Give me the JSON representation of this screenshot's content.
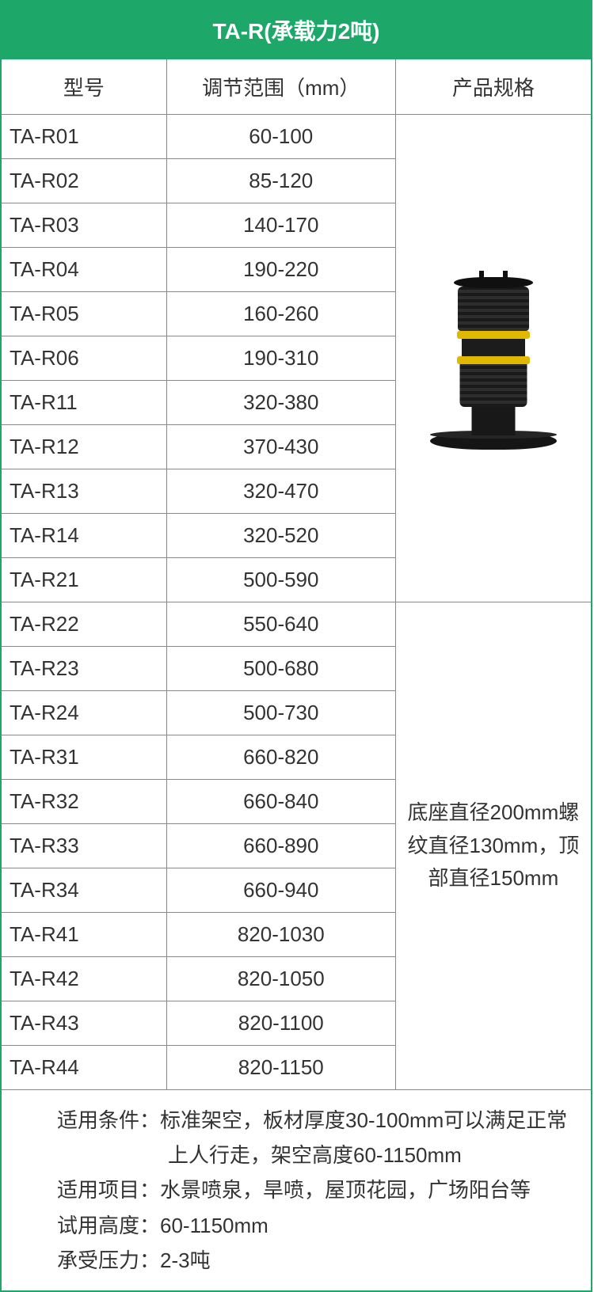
{
  "title": "TA-R(承载力2吨)",
  "columns": {
    "model": "型号",
    "range": "调节范围（mm）",
    "spec": "产品规格"
  },
  "rows_top": [
    {
      "model": "TA-R01",
      "range": "60-100"
    },
    {
      "model": "TA-R02",
      "range": "85-120"
    },
    {
      "model": "TA-R03",
      "range": "140-170"
    },
    {
      "model": "TA-R04",
      "range": "190-220"
    },
    {
      "model": "TA-R05",
      "range": "160-260"
    },
    {
      "model": "TA-R06",
      "range": "190-310"
    },
    {
      "model": "TA-R11",
      "range": "320-380"
    },
    {
      "model": "TA-R12",
      "range": "370-430"
    },
    {
      "model": "TA-R13",
      "range": "320-470"
    },
    {
      "model": "TA-R14",
      "range": "320-520"
    },
    {
      "model": "TA-R21",
      "range": "500-590"
    }
  ],
  "rows_bottom": [
    {
      "model": "TA-R22",
      "range": "550-640"
    },
    {
      "model": "TA-R23",
      "range": "500-680"
    },
    {
      "model": "TA-R24",
      "range": "500-730"
    },
    {
      "model": "TA-R31",
      "range": "660-820"
    },
    {
      "model": "TA-R32",
      "range": "660-840"
    },
    {
      "model": "TA-R33",
      "range": "660-890"
    },
    {
      "model": "TA-R34",
      "range": "660-940"
    },
    {
      "model": "TA-R41",
      "range": "820-1030"
    },
    {
      "model": "TA-R42",
      "range": "820-1050"
    },
    {
      "model": "TA-R43",
      "range": "820-1100"
    },
    {
      "model": "TA-R44",
      "range": "820-1150"
    }
  ],
  "spec_text": "底座直径200mm螺纹直径130mm，顶部直径150mm",
  "footer": {
    "cond_label": "适用条件：",
    "cond_val": "标准架空，板材厚度30-100mm可以满足正常上人行走，架空高度60-1150mm",
    "proj_label": "适用项目：",
    "proj_val": "水景喷泉，旱喷，屋顶花园，广场阳台等",
    "height_label": "试用高度：",
    "height_val": "60-1150mm",
    "load_label": "承受压力：",
    "load_val": "2-3吨"
  },
  "colors": {
    "brand": "#1da869",
    "border": "#888888",
    "text": "#333333",
    "accent_band": "#e0b800",
    "body_black": "#181818"
  }
}
